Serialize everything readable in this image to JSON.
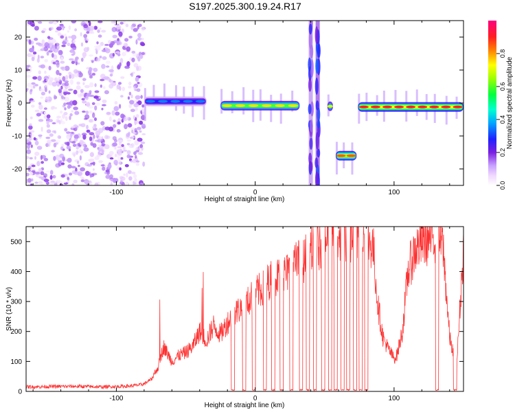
{
  "figure": {
    "title": "S197.2025.300.19.24.R17"
  },
  "chart_data": [
    {
      "type": "heatmap",
      "name": "spectrogram",
      "xlabel": "Height of straight line (km)",
      "ylabel": "Frequency (Hz)",
      "xlim": [
        -165,
        150
      ],
      "ylim": [
        -25,
        25
      ],
      "xticks": [
        -100,
        0,
        100
      ],
      "yticks": [
        -20,
        -10,
        0,
        10,
        20
      ],
      "colorbar": {
        "label": "Normalized spectral amplitude",
        "range": [
          0,
          1
        ],
        "ticks": [
          0.0,
          0.2,
          0.4,
          0.6,
          0.8
        ],
        "tick_labels": [
          "0.0",
          "0.2",
          "0.4",
          "0.6",
          "0.8"
        ]
      },
      "features": [
        {
          "desc": "diffuse noise",
          "x_range": [
            -165,
            -80
          ],
          "freq_range": [
            -25,
            25
          ],
          "amplitude": 0.1
        },
        {
          "desc": "tone segment",
          "x_range": [
            -80,
            -35
          ],
          "freq": 0.5,
          "amplitude": 0.35
        },
        {
          "desc": "tone segment",
          "x_range": [
            -25,
            32
          ],
          "freq": -0.8,
          "amplitude": 0.75
        },
        {
          "desc": "broadband spike",
          "x": 40,
          "freq_range": [
            -25,
            25
          ],
          "amplitude": 0.15
        },
        {
          "desc": "broadband spike",
          "x": 45,
          "freq_range": [
            -25,
            25
          ],
          "amplitude": 0.2
        },
        {
          "desc": "tone segment",
          "x_range": [
            52,
            56
          ],
          "freq": -1.0,
          "amplitude": 0.7
        },
        {
          "desc": "tone segment",
          "x_range": [
            58,
            73
          ],
          "freq": -16.0,
          "amplitude": 0.85
        },
        {
          "desc": "tone segment",
          "x_range": [
            74,
            150
          ],
          "freq": -1.2,
          "amplitude": 0.9
        }
      ]
    },
    {
      "type": "line",
      "name": "snr",
      "xlabel": "Height of straight line (km)",
      "ylabel": "SNR (10 * v/v)",
      "xlim": [
        -165,
        150
      ],
      "ylim": [
        0,
        550
      ],
      "xticks": [
        -100,
        0,
        100
      ],
      "yticks": [
        0,
        100,
        200,
        300,
        400,
        500
      ],
      "color": "#ff3030",
      "series": [
        {
          "name": "SNR",
          "x": [
            -165,
            -150,
            -130,
            -110,
            -90,
            -83,
            -80,
            -75,
            -70,
            -66,
            -60,
            -55,
            -50,
            -45,
            -40,
            -35,
            -30,
            -25,
            -20,
            -15,
            -10,
            -5,
            0,
            5,
            10,
            15,
            20,
            25,
            30,
            35,
            40,
            45,
            50,
            55,
            60,
            65,
            70,
            75,
            80,
            85,
            88,
            92,
            96,
            100,
            102,
            106,
            110,
            115,
            120,
            125,
            130,
            135,
            140,
            145,
            150
          ],
          "y": [
            15,
            16,
            17,
            15,
            18,
            22,
            25,
            40,
            80,
            150,
            100,
            120,
            130,
            150,
            200,
            170,
            220,
            190,
            230,
            260,
            280,
            300,
            330,
            340,
            370,
            380,
            390,
            400,
            430,
            440,
            470,
            480,
            500,
            520,
            520,
            520,
            520,
            520,
            520,
            480,
            300,
            180,
            140,
            110,
            120,
            200,
            400,
            470,
            500,
            510,
            520,
            500,
            180,
            80,
            480
          ]
        }
      ],
      "dropouts": [
        -16,
        -8,
        -1,
        7,
        13,
        19,
        26,
        33,
        38,
        43,
        49,
        54,
        58,
        63,
        67,
        72,
        76,
        80,
        131,
        144
      ]
    }
  ]
}
